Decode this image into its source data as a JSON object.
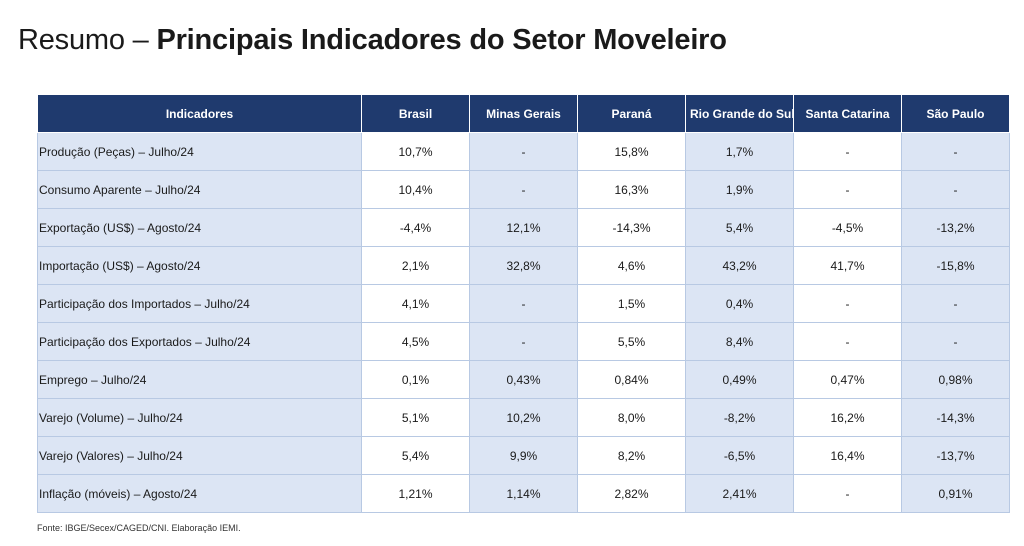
{
  "title": {
    "prefix": "Resumo –",
    "main": "Principais Indicadores do Setor Moveleiro"
  },
  "table": {
    "headers": [
      "Indicadores",
      "Brasil",
      "Minas Gerais",
      "Paraná",
      "Rio Grande do Sul",
      "Santa Catarina",
      "São Paulo"
    ],
    "rows": [
      [
        "Produção (Peças) – Julho/24",
        "10,7%",
        "-",
        "15,8%",
        "1,7%",
        "-",
        "-"
      ],
      [
        "Consumo Aparente – Julho/24",
        "10,4%",
        "-",
        "16,3%",
        "1,9%",
        "-",
        "-"
      ],
      [
        "Exportação (US$) – Agosto/24",
        "-4,4%",
        "12,1%",
        "-14,3%",
        "5,4%",
        "-4,5%",
        "-13,2%"
      ],
      [
        "Importação (US$) – Agosto/24",
        "2,1%",
        "32,8%",
        "4,6%",
        "43,2%",
        "41,7%",
        "-15,8%"
      ],
      [
        "Participação dos Importados – Julho/24",
        "4,1%",
        "-",
        "1,5%",
        "0,4%",
        "-",
        "-"
      ],
      [
        "Participação dos Exportados – Julho/24",
        "4,5%",
        "-",
        "5,5%",
        "8,4%",
        "-",
        "-"
      ],
      [
        "Emprego – Julho/24",
        "0,1%",
        "0,43%",
        "0,84%",
        "0,49%",
        "0,47%",
        "0,98%"
      ],
      [
        "Varejo (Volume) – Julho/24",
        "5,1%",
        "10,2%",
        "8,0%",
        "-8,2%",
        "16,2%",
        "-14,3%"
      ],
      [
        "Varejo (Valores) – Julho/24",
        "5,4%",
        "9,9%",
        "8,2%",
        "-6,5%",
        "16,4%",
        "-13,7%"
      ],
      [
        "Inflação (móveis)  – Agosto/24",
        "1,21%",
        "1,14%",
        "2,82%",
        "2,41%",
        "-",
        "0,91%"
      ]
    ]
  },
  "source": "Fonte: IBGE/Secex/CAGED/CNI. Elaboração IEMI.",
  "colors": {
    "header_bg": "#1f3a6e",
    "header_text": "#ffffff",
    "cell_blue": "#dce5f4",
    "cell_white": "#ffffff",
    "border": "#b8c9e3"
  }
}
